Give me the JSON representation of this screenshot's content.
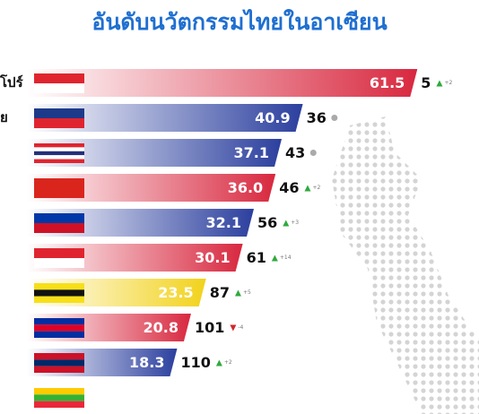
{
  "chart_data": {
    "type": "bar",
    "orientation": "horizontal",
    "title": "อันดับนวัตกรรมไทยในอาเซียน",
    "categories": [
      "โปร์",
      "ย",
      null,
      null,
      null,
      null,
      null,
      null,
      null,
      null
    ],
    "values": [
      61.5,
      40.9,
      37.1,
      36.0,
      32.1,
      30.1,
      23.5,
      20.8,
      18.3,
      null
    ],
    "value_labels": [
      "61.5",
      "40.9",
      "37.1",
      "36.0",
      "32.1",
      "30.1",
      "23.5",
      "20.8",
      "18.3",
      null
    ],
    "colors": [
      "#d8283f",
      "#2b3f9e",
      "#2b3f9e",
      "#d8283f",
      "#2b3f9e",
      "#d8283f",
      "#f2d21b",
      "#d8283f",
      "#2b3f9e",
      "#f2d21b"
    ],
    "ranks": [
      5,
      36,
      43,
      46,
      56,
      61,
      87,
      101,
      110,
      null
    ],
    "rank_changes": [
      2,
      null,
      null,
      2,
      3,
      14,
      5,
      -4,
      2,
      null
    ],
    "rank_change_labels": [
      "+2",
      null,
      null,
      "+2",
      "+3",
      "+14",
      "+5",
      "-4",
      "+2",
      null
    ]
  }
}
